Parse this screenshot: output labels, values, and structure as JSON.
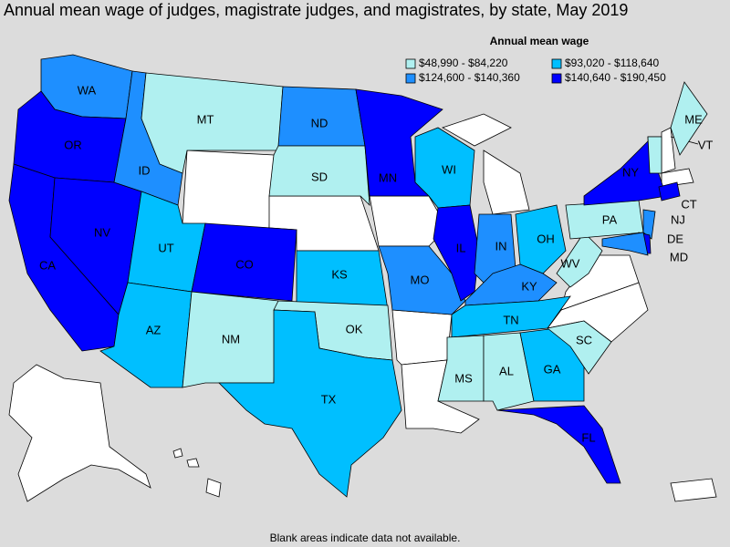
{
  "title": "Annual mean wage of judges, magistrate judges, and magistrates, by state, May 2019",
  "legend": {
    "title": "Annual mean wage",
    "items": [
      {
        "label": "$48,990 - $84,220",
        "color": "#b0f0f0"
      },
      {
        "label": "$93,020 - $118,640",
        "color": "#00bfff"
      },
      {
        "label": "$124,600 - $140,360",
        "color": "#1e8fff"
      },
      {
        "label": "$140,640 - $190,450",
        "color": "#0000ff"
      }
    ]
  },
  "states": [
    {
      "label": "WA",
      "color": "#1e8fff"
    },
    {
      "label": "OR",
      "color": "#0000ff"
    },
    {
      "label": "CA",
      "color": "#0000ff"
    },
    {
      "label": "NV",
      "color": "#0000ff"
    },
    {
      "label": "ID",
      "color": "#1e8fff"
    },
    {
      "label": "MT",
      "color": "#b0f0f0"
    },
    {
      "label": "UT",
      "color": "#00bfff"
    },
    {
      "label": "CO",
      "color": "#0000ff"
    },
    {
      "label": "AZ",
      "color": "#00bfff"
    },
    {
      "label": "NM",
      "color": "#b0f0f0"
    },
    {
      "label": "ND",
      "color": "#1e8fff"
    },
    {
      "label": "SD",
      "color": "#b0f0f0"
    },
    {
      "label": "KS",
      "color": "#00bfff"
    },
    {
      "label": "OK",
      "color": "#b0f0f0"
    },
    {
      "label": "TX",
      "color": "#00bfff"
    },
    {
      "label": "MN",
      "color": "#0000ff"
    },
    {
      "label": "MO",
      "color": "#1e8fff"
    },
    {
      "label": "WI",
      "color": "#00bfff"
    },
    {
      "label": "IL",
      "color": "#0000ff"
    },
    {
      "label": "IN",
      "color": "#1e8fff"
    },
    {
      "label": "OH",
      "color": "#00bfff"
    },
    {
      "label": "KY",
      "color": "#1e8fff"
    },
    {
      "label": "TN",
      "color": "#00bfff"
    },
    {
      "label": "MS",
      "color": "#b0f0f0"
    },
    {
      "label": "AL",
      "color": "#b0f0f0"
    },
    {
      "label": "GA",
      "color": "#00bfff"
    },
    {
      "label": "FL",
      "color": "#0000ff"
    },
    {
      "label": "SC",
      "color": "#b0f0f0"
    },
    {
      "label": "WV",
      "color": "#b0f0f0"
    },
    {
      "label": "PA",
      "color": "#b0f0f0"
    },
    {
      "label": "NY",
      "color": "#0000ff"
    },
    {
      "label": "NJ",
      "color": "#1e8fff"
    },
    {
      "label": "DE",
      "color": "#0000ff"
    },
    {
      "label": "MD",
      "color": "#1e8fff"
    },
    {
      "label": "CT",
      "color": "#0000ff"
    },
    {
      "label": "VT",
      "color": "#b0f0f0"
    },
    {
      "label": "ME",
      "color": "#b0f0f0"
    }
  ],
  "note": "Blank areas indicate data not available."
}
